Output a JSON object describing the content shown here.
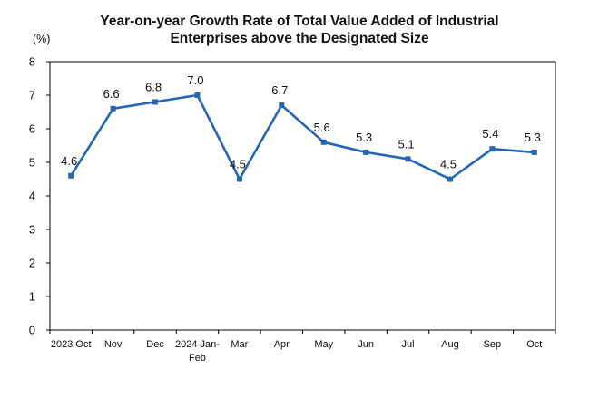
{
  "chart_data": {
    "type": "line",
    "title_line1": "Year-on-year Growth Rate of Total Value Added of Industrial",
    "title_line2": "Enterprises above the Designated Size",
    "ylabel": "(%)",
    "ylim": [
      0,
      8
    ],
    "yticks": [
      "0",
      "1",
      "2",
      "3",
      "4",
      "5",
      "6",
      "7",
      "8"
    ],
    "categories": [
      [
        "2023 Oct"
      ],
      [
        "Nov"
      ],
      [
        "Dec"
      ],
      [
        "2024 Jan-",
        "Feb"
      ],
      [
        "Mar"
      ],
      [
        "Apr"
      ],
      [
        "May"
      ],
      [
        "Jun"
      ],
      [
        "Jul"
      ],
      [
        "Aug"
      ],
      [
        "Sep"
      ],
      [
        "Oct"
      ]
    ],
    "series": [
      {
        "values": [
          4.6,
          6.6,
          6.8,
          7.0,
          4.5,
          6.7,
          5.6,
          5.3,
          5.1,
          4.5,
          5.4,
          5.3
        ],
        "labels": [
          "4.6",
          "6.6",
          "6.8",
          "7.0",
          "4.5",
          "6.7",
          "5.6",
          "5.3",
          "5.1",
          "4.5",
          "5.4",
          "5.3"
        ],
        "color": "#2565b5"
      }
    ],
    "grid": false,
    "legend": "none",
    "colors": {
      "line": "#2565b5",
      "frame": "#000000",
      "text": "#111111"
    }
  }
}
